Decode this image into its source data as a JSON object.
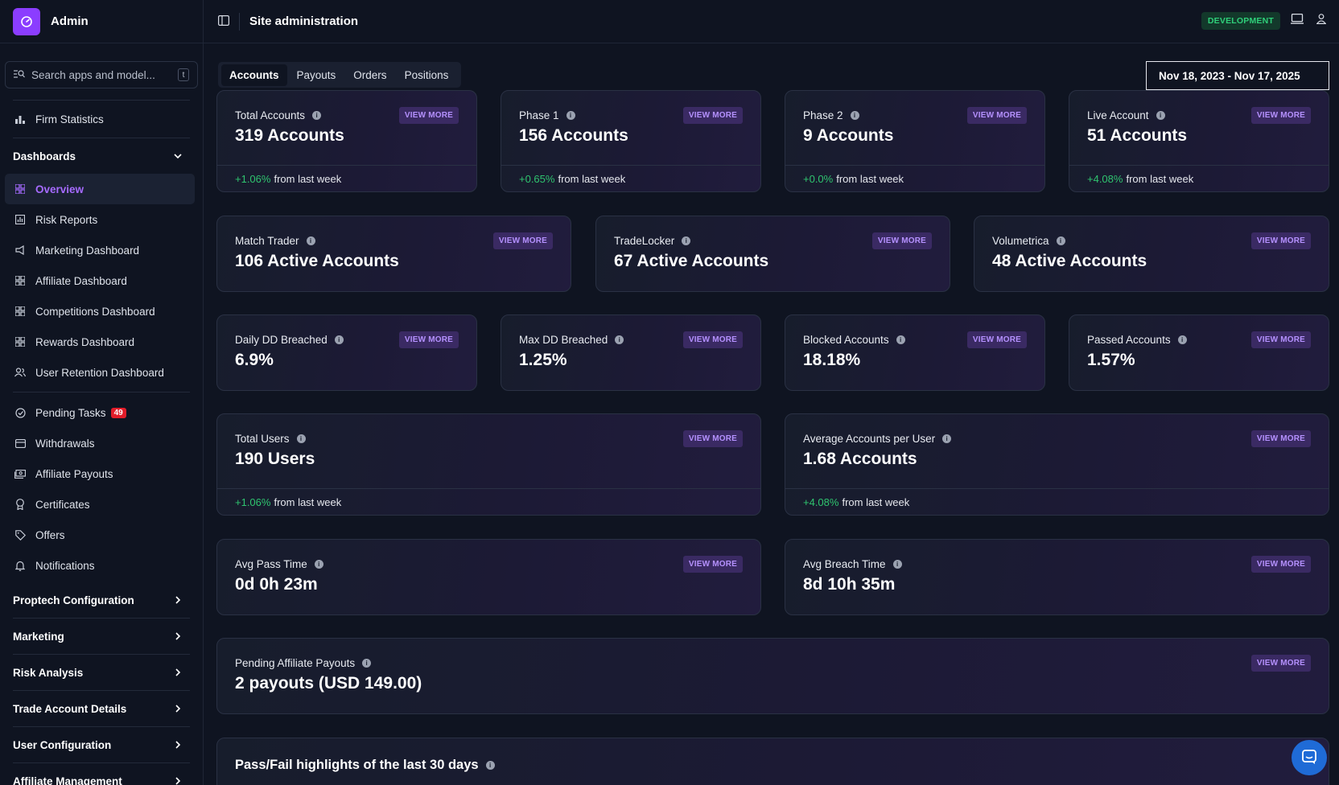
{
  "brand": {
    "title": "Admin"
  },
  "search": {
    "placeholder": "Search apps and model...",
    "shortcut": "t"
  },
  "sidebar": {
    "firm_statistics": "Firm Statistics",
    "dashboards_header": "Dashboards",
    "dashboards": [
      {
        "label": "Overview",
        "icon": "grid-icon"
      },
      {
        "label": "Risk Reports",
        "icon": "chart-icon"
      },
      {
        "label": "Marketing Dashboard",
        "icon": "megaphone-icon"
      },
      {
        "label": "Affiliate Dashboard",
        "icon": "grid-icon"
      },
      {
        "label": "Competitions Dashboard",
        "icon": "grid-icon"
      },
      {
        "label": "Rewards Dashboard",
        "icon": "grid-icon"
      },
      {
        "label": "User Retention Dashboard",
        "icon": "users-icon"
      }
    ],
    "pending_tasks": "Pending Tasks",
    "pending_count": "49",
    "withdrawals": "Withdrawals",
    "affiliate_payouts": "Affiliate Payouts",
    "certificates": "Certificates",
    "offers": "Offers",
    "notifications": "Notifications",
    "sections": [
      "Proptech Configuration",
      "Marketing",
      "Risk Analysis",
      "Trade Account Details",
      "User Configuration",
      "Affiliate Management"
    ]
  },
  "topbar": {
    "title": "Site administration",
    "env": "DEVELOPMENT"
  },
  "tabs": [
    "Accounts",
    "Payouts",
    "Orders",
    "Positions"
  ],
  "daterange": "Nov 18, 2023 - Nov 17, 2025",
  "view_more": "VIEW MORE",
  "from_last_week": "from last week",
  "cards": {
    "total_accounts": {
      "label": "Total Accounts",
      "value": "319 Accounts",
      "change": "+1.06%"
    },
    "phase1": {
      "label": "Phase 1",
      "value": "156 Accounts",
      "change": "+0.65%"
    },
    "phase2": {
      "label": "Phase 2",
      "value": "9 Accounts",
      "change": "+0.0%"
    },
    "live": {
      "label": "Live Account",
      "value": "51 Accounts",
      "change": "+4.08%"
    },
    "match_trader": {
      "label": "Match Trader",
      "value": "106 Active Accounts"
    },
    "tradelocker": {
      "label": "TradeLocker",
      "value": "67 Active Accounts"
    },
    "volumetrica": {
      "label": "Volumetrica",
      "value": "48 Active Accounts"
    },
    "daily_dd": {
      "label": "Daily DD Breached",
      "value": "6.9%"
    },
    "max_dd": {
      "label": "Max DD Breached",
      "value": "1.25%"
    },
    "blocked": {
      "label": "Blocked Accounts",
      "value": "18.18%"
    },
    "passed": {
      "label": "Passed Accounts",
      "value": "1.57%"
    },
    "total_users": {
      "label": "Total Users",
      "value": "190 Users",
      "change": "+1.06%"
    },
    "avg_accounts": {
      "label": "Average Accounts per User",
      "value": "1.68 Accounts",
      "change": "+4.08%"
    },
    "avg_pass": {
      "label": "Avg Pass Time",
      "value": "0d 0h 23m"
    },
    "avg_breach": {
      "label": "Avg Breach Time",
      "value": "8d 10h 35m"
    },
    "pending_payouts": {
      "label": "Pending Affiliate Payouts",
      "value": "2 payouts (USD 149.00)"
    },
    "highlights": {
      "label": "Pass/Fail highlights of the last 30 days"
    }
  }
}
